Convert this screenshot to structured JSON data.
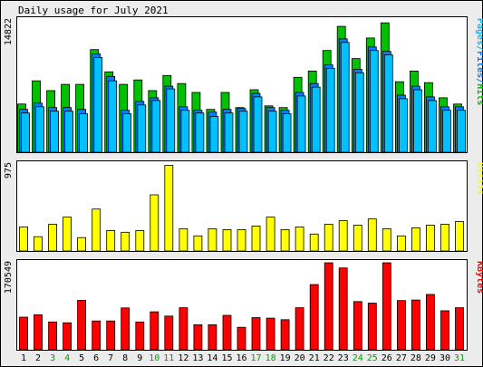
{
  "chart_data": {
    "type": "bar",
    "title": "Daily usage for July 2021",
    "days": [
      "1",
      "2",
      "3",
      "4",
      "5",
      "6",
      "7",
      "8",
      "9",
      "10",
      "11",
      "12",
      "13",
      "14",
      "15",
      "16",
      "17",
      "18",
      "19",
      "20",
      "21",
      "22",
      "23",
      "24",
      "25",
      "26",
      "27",
      "28",
      "29",
      "30",
      "31"
    ],
    "weekend_days": [
      "3",
      "4",
      "10",
      "11",
      "17",
      "18",
      "24",
      "25",
      "31"
    ],
    "panels": [
      {
        "id": "top",
        "ymax_label": "14822",
        "ymax": 14822,
        "legend": [
          {
            "text": "Pages",
            "color": "#00c0ff"
          },
          {
            "text": "/",
            "color": "#00c0ff"
          },
          {
            "text": "Files",
            "color": "#0080ff"
          },
          {
            "text": "/",
            "color": "#0080ff"
          },
          {
            "text": "Hits",
            "color": "#00c000"
          }
        ],
        "series": [
          {
            "name": "Hits",
            "color": "#00c000",
            "offset": 0,
            "values": [
              5400,
              8000,
              6900,
              7600,
              7600,
              11500,
              9000,
              7600,
              8100,
              6900,
              8600,
              7700,
              6700,
              4800,
              6700,
              5000,
              7000,
              5200,
              5000,
              8400,
              9100,
              11400,
              14100,
              10500,
              12800,
              14500,
              7900,
              9100,
              7800,
              6100,
              5400
            ]
          },
          {
            "name": "Files",
            "color": "#0080ff",
            "offset": 1,
            "values": [
              4800,
              5500,
              5000,
              5000,
              4800,
              11000,
              8500,
              4700,
              5700,
              6100,
              7400,
              5100,
              4700,
              4500,
              4800,
              4900,
              6600,
              5000,
              4700,
              6700,
              7700,
              9800,
              12700,
              9300,
              11800,
              11300,
              6400,
              7400,
              6200,
              5100,
              5100
            ]
          },
          {
            "name": "Pages",
            "color": "#00c0ff",
            "offset": 2,
            "values": [
              4400,
              5100,
              4600,
              4600,
              4300,
              10600,
              8000,
              4300,
              5300,
              5800,
              7100,
              4700,
              4400,
              4000,
              4400,
              4600,
              6200,
              4600,
              4300,
              6300,
              7300,
              9400,
              12300,
              8900,
              11400,
              10900,
              6000,
              7000,
              5800,
              4700,
              4700
            ]
          }
        ]
      },
      {
        "id": "mid",
        "ymax_label": "975",
        "ymax": 975,
        "legend": [
          {
            "text": "Visits",
            "color": "#ffff00"
          }
        ],
        "series": [
          {
            "name": "Visits",
            "color": "#ffff00",
            "offset": 0,
            "values": [
              270,
              160,
              300,
              380,
              150,
              470,
              230,
              210,
              230,
              630,
              960,
              250,
              170,
              250,
              240,
              240,
              280,
              380,
              240,
              270,
              190,
              300,
              340,
              290,
              360,
              250,
              170,
              260,
              290,
              300,
              330
            ]
          }
        ]
      },
      {
        "id": "bot",
        "ymax_label": "170549",
        "ymax": 170549,
        "legend": [
          {
            "text": "KBytes",
            "color": "#ff0000"
          }
        ],
        "series": [
          {
            "name": "KBytes",
            "color": "#ff0000",
            "offset": 0,
            "values": [
              64000,
              68500,
              54500,
              53000,
              97000,
              56500,
              56500,
              82000,
              54500,
              74500,
              66000,
              82500,
              49000,
              49000,
              67500,
              44000,
              63000,
              62000,
              59000,
              82500,
              128000,
              172500,
              160500,
              94500,
              91500,
              171000,
              96500,
              97500,
              108500,
              76500,
              82500
            ]
          }
        ]
      }
    ]
  }
}
